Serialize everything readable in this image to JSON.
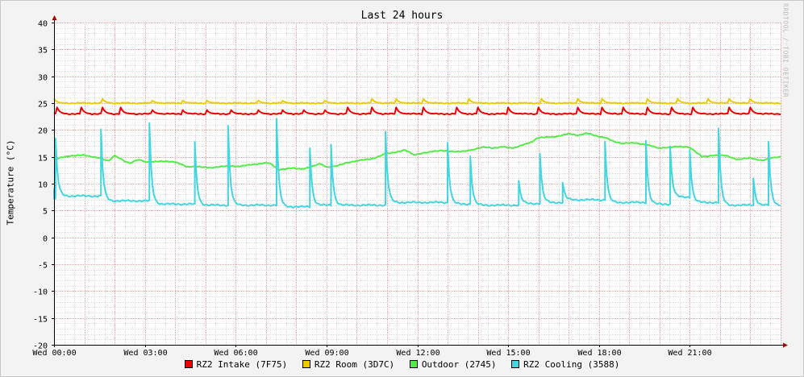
{
  "chart_data": {
    "type": "line",
    "title": "Last 24 hours",
    "ylabel": "Temperature (°C)",
    "xlabel": "",
    "watermark": "RRDTOOL / TOBI OETIKER",
    "ylim": [
      -20,
      40
    ],
    "yticks": [
      40,
      35,
      30,
      25,
      20,
      15,
      10,
      5,
      0,
      -5,
      -10,
      -15,
      -20
    ],
    "xlim": [
      0,
      24
    ],
    "xticks": [
      {
        "h": 0,
        "label": "Wed 00:00"
      },
      {
        "h": 3,
        "label": "Wed 03:00"
      },
      {
        "h": 6,
        "label": "Wed 06:00"
      },
      {
        "h": 9,
        "label": "Wed 09:00"
      },
      {
        "h": 12,
        "label": "Wed 12:00"
      },
      {
        "h": 15,
        "label": "Wed 15:00"
      },
      {
        "h": 18,
        "label": "Wed 18:00"
      },
      {
        "h": 21,
        "label": "Wed 21:00"
      }
    ],
    "grid": true,
    "legend_position": "bottom",
    "series": [
      {
        "name": "RZ2 Intake (7F75)",
        "color": "#ee0000",
        "base": 23.0,
        "spike_height": 1.2,
        "spike_hours": [
          0.1,
          0.9,
          1.6,
          2.2,
          3.2,
          4.2,
          5.0,
          5.8,
          6.7,
          7.5,
          8.2,
          8.9,
          9.7,
          10.5,
          11.3,
          12.2,
          13.3,
          14.0,
          15.0,
          16.0,
          17.3,
          18.1,
          18.8,
          19.6,
          20.4,
          21.1,
          22.3,
          23.0
        ]
      },
      {
        "name": "RZ2 Room (3D7C)",
        "color": "#eacc00",
        "base": 25.0,
        "spike_height": 0.8,
        "spike_hours": [
          0.0,
          1.6,
          3.2,
          4.2,
          5.0,
          6.7,
          7.5,
          8.9,
          10.5,
          11.3,
          12.2,
          13.7,
          16.1,
          17.3,
          18.1,
          19.6,
          20.6,
          21.6,
          22.3,
          23.0
        ]
      },
      {
        "name": "Outdoor (2745)",
        "color": "#54ec48",
        "points": [
          [
            0.0,
            14.5
          ],
          [
            0.5,
            15.2
          ],
          [
            1.0,
            15.3
          ],
          [
            1.5,
            14.8
          ],
          [
            1.8,
            14.2
          ],
          [
            2.0,
            15.2
          ],
          [
            2.3,
            14.3
          ],
          [
            2.5,
            13.8
          ],
          [
            2.8,
            14.5
          ],
          [
            3.0,
            14.0
          ],
          [
            3.5,
            14.2
          ],
          [
            4.0,
            14.0
          ],
          [
            4.2,
            13.6
          ],
          [
            4.4,
            13.1
          ],
          [
            4.8,
            13.2
          ],
          [
            5.2,
            12.9
          ],
          [
            5.6,
            13.3
          ],
          [
            6.0,
            13.2
          ],
          [
            6.5,
            13.5
          ],
          [
            7.0,
            13.9
          ],
          [
            7.2,
            13.6
          ],
          [
            7.4,
            12.6
          ],
          [
            7.8,
            12.9
          ],
          [
            8.2,
            12.7
          ],
          [
            8.5,
            13.2
          ],
          [
            8.8,
            13.7
          ],
          [
            9.0,
            13.1
          ],
          [
            9.3,
            13.3
          ],
          [
            9.7,
            13.9
          ],
          [
            10.0,
            14.3
          ],
          [
            10.5,
            14.6
          ],
          [
            11.0,
            15.7
          ],
          [
            11.3,
            15.8
          ],
          [
            11.6,
            16.3
          ],
          [
            11.9,
            15.4
          ],
          [
            12.3,
            15.8
          ],
          [
            12.8,
            16.2
          ],
          [
            13.3,
            15.9
          ],
          [
            13.8,
            16.3
          ],
          [
            14.2,
            16.8
          ],
          [
            14.5,
            16.6
          ],
          [
            14.8,
            16.9
          ],
          [
            15.2,
            16.6
          ],
          [
            15.5,
            17.3
          ],
          [
            15.8,
            17.8
          ],
          [
            16.0,
            18.6
          ],
          [
            16.5,
            18.7
          ],
          [
            17.0,
            19.3
          ],
          [
            17.3,
            19.0
          ],
          [
            17.6,
            19.4
          ],
          [
            17.9,
            18.9
          ],
          [
            18.2,
            18.6
          ],
          [
            18.5,
            17.8
          ],
          [
            18.8,
            17.5
          ],
          [
            19.2,
            17.6
          ],
          [
            19.6,
            17.2
          ],
          [
            20.0,
            16.6
          ],
          [
            20.5,
            16.9
          ],
          [
            21.0,
            16.8
          ],
          [
            21.4,
            15.0
          ],
          [
            21.8,
            15.3
          ],
          [
            22.2,
            15.2
          ],
          [
            22.6,
            14.5
          ],
          [
            23.0,
            14.8
          ],
          [
            23.4,
            14.3
          ],
          [
            23.8,
            14.9
          ],
          [
            24.0,
            15.0
          ]
        ]
      },
      {
        "name": "RZ2 Cooling (3588)",
        "color": "#42d6e0",
        "tail_start": 7.2,
        "decay_start": 9.2,
        "spikes": [
          {
            "h": 0.05,
            "peak": 18.3,
            "floor": 7.7
          },
          {
            "h": 1.55,
            "peak": 20.0,
            "floor": 6.8
          },
          {
            "h": 3.15,
            "peak": 21.3,
            "floor": 6.2
          },
          {
            "h": 4.65,
            "peak": 17.8,
            "floor": 6.0
          },
          {
            "h": 5.75,
            "peak": 20.8,
            "floor": 6.0
          },
          {
            "h": 7.35,
            "peak": 22.1,
            "floor": 5.7
          },
          {
            "h": 8.45,
            "peak": 16.6,
            "floor": 6.0
          },
          {
            "h": 9.15,
            "peak": 17.3,
            "floor": 6.0
          },
          {
            "h": 10.95,
            "peak": 19.6,
            "floor": 6.5
          },
          {
            "h": 13.0,
            "peak": 17.6,
            "floor": 6.2
          },
          {
            "h": 13.75,
            "peak": 15.1,
            "floor": 6.0
          },
          {
            "h": 15.35,
            "peak": 10.5,
            "floor": 6.3
          },
          {
            "h": 16.05,
            "peak": 15.6,
            "floor": 6.5
          },
          {
            "h": 16.8,
            "peak": 10.2,
            "floor": 7.0
          },
          {
            "h": 18.2,
            "peak": 17.8,
            "floor": 6.5
          },
          {
            "h": 19.55,
            "peak": 18.0,
            "floor": 6.2
          },
          {
            "h": 20.35,
            "peak": 16.9,
            "floor": 7.5
          },
          {
            "h": 21.0,
            "peak": 16.3,
            "floor": 6.5
          },
          {
            "h": 21.95,
            "peak": 20.3,
            "floor": 6.0
          },
          {
            "h": 23.1,
            "peak": 11.0,
            "floor": 6.0
          },
          {
            "h": 23.6,
            "peak": 17.8,
            "floor": 6.0
          }
        ]
      }
    ]
  }
}
